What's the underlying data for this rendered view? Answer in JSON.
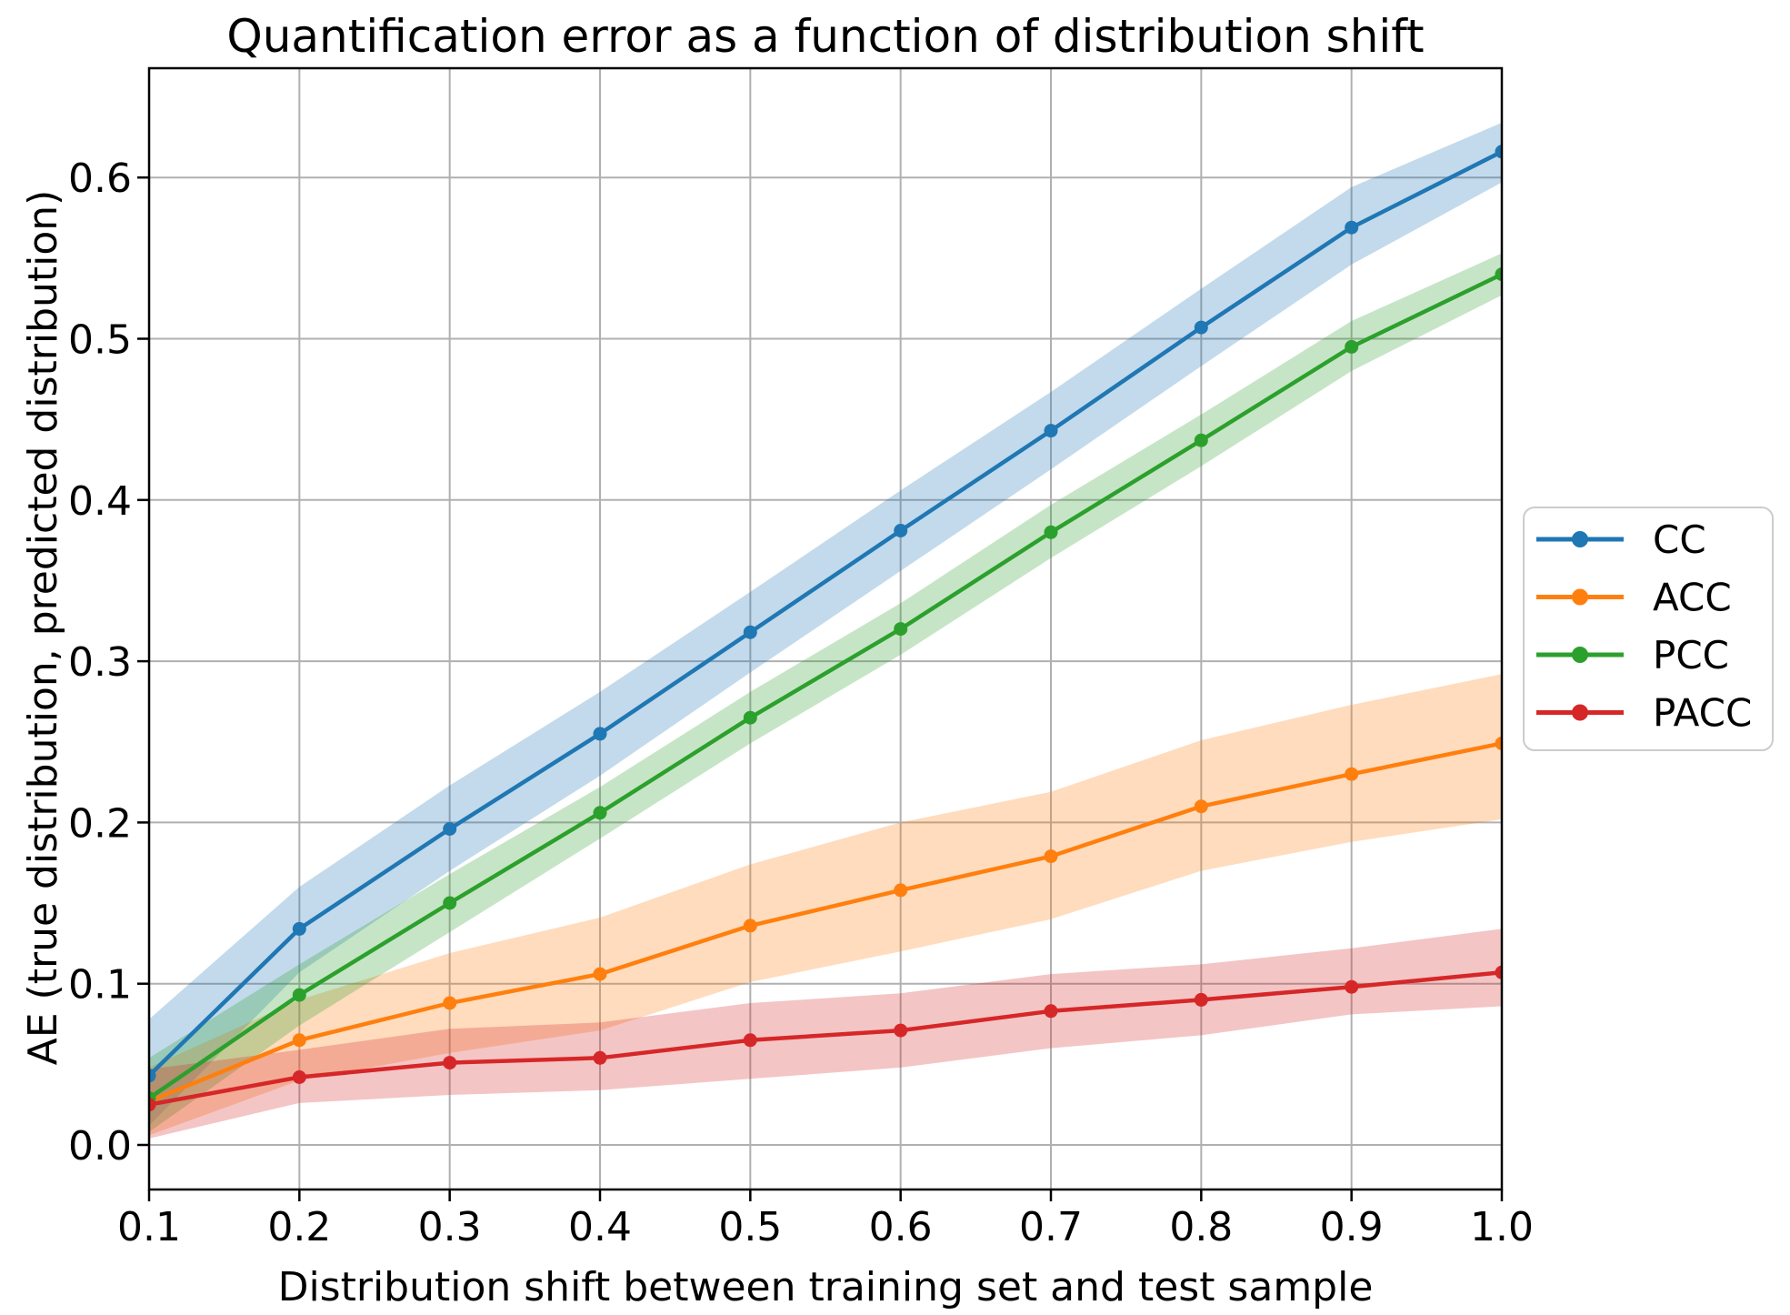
{
  "chart_data": {
    "type": "line",
    "title": "Quantification error as a function of distribution shift",
    "xlabel": "Distribution shift between training set and test sample",
    "ylabel": "AE (true distribution, predicted distribution)",
    "x": [
      0.1,
      0.2,
      0.3,
      0.4,
      0.5,
      0.6,
      0.7,
      0.8,
      0.9,
      1.0
    ],
    "xtick_labels": [
      "0.1",
      "0.2",
      "0.3",
      "0.4",
      "0.5",
      "0.6",
      "0.7",
      "0.8",
      "0.9",
      "1.0"
    ],
    "ytick_values": [
      0.0,
      0.1,
      0.2,
      0.3,
      0.4,
      0.5,
      0.6
    ],
    "ytick_labels": [
      "0.0",
      "0.1",
      "0.2",
      "0.3",
      "0.4",
      "0.5",
      "0.6"
    ],
    "xlim": [
      0.1,
      1.0
    ],
    "ylim": [
      -0.028,
      0.67
    ],
    "grid": true,
    "grid_color": "#b0b0b0",
    "band_alpha": 0.27,
    "legend": {
      "position": "outside-right",
      "labels": [
        "CC",
        "ACC",
        "PCC",
        "PACC"
      ]
    },
    "series": [
      {
        "name": "CC",
        "color": "#1f77b4",
        "values": [
          0.043,
          0.134,
          0.196,
          0.255,
          0.318,
          0.381,
          0.443,
          0.507,
          0.569,
          0.616
        ],
        "band_lo": [
          0.012,
          0.107,
          0.17,
          0.229,
          0.293,
          0.356,
          0.419,
          0.483,
          0.546,
          0.597
        ],
        "band_hi": [
          0.078,
          0.16,
          0.223,
          0.281,
          0.343,
          0.406,
          0.467,
          0.531,
          0.594,
          0.634
        ]
      },
      {
        "name": "ACC",
        "color": "#ff7f0e",
        "values": [
          0.027,
          0.065,
          0.088,
          0.106,
          0.136,
          0.158,
          0.179,
          0.21,
          0.23,
          0.249
        ],
        "band_lo": [
          0.006,
          0.04,
          0.057,
          0.071,
          0.101,
          0.12,
          0.14,
          0.17,
          0.188,
          0.202
        ],
        "band_hi": [
          0.048,
          0.09,
          0.119,
          0.141,
          0.174,
          0.2,
          0.219,
          0.251,
          0.273,
          0.292
        ]
      },
      {
        "name": "PCC",
        "color": "#2ca02c",
        "values": [
          0.029,
          0.093,
          0.15,
          0.206,
          0.265,
          0.32,
          0.38,
          0.437,
          0.495,
          0.54
        ],
        "band_lo": [
          0.008,
          0.074,
          0.132,
          0.19,
          0.249,
          0.304,
          0.364,
          0.421,
          0.48,
          0.527
        ],
        "band_hi": [
          0.054,
          0.112,
          0.168,
          0.222,
          0.281,
          0.336,
          0.397,
          0.453,
          0.511,
          0.553
        ]
      },
      {
        "name": "PACC",
        "color": "#d62728",
        "values": [
          0.025,
          0.042,
          0.051,
          0.054,
          0.065,
          0.071,
          0.083,
          0.09,
          0.098,
          0.107
        ],
        "band_lo": [
          0.004,
          0.026,
          0.031,
          0.034,
          0.041,
          0.048,
          0.06,
          0.068,
          0.081,
          0.086
        ],
        "band_hi": [
          0.047,
          0.059,
          0.072,
          0.076,
          0.088,
          0.094,
          0.106,
          0.112,
          0.122,
          0.134
        ]
      }
    ]
  }
}
